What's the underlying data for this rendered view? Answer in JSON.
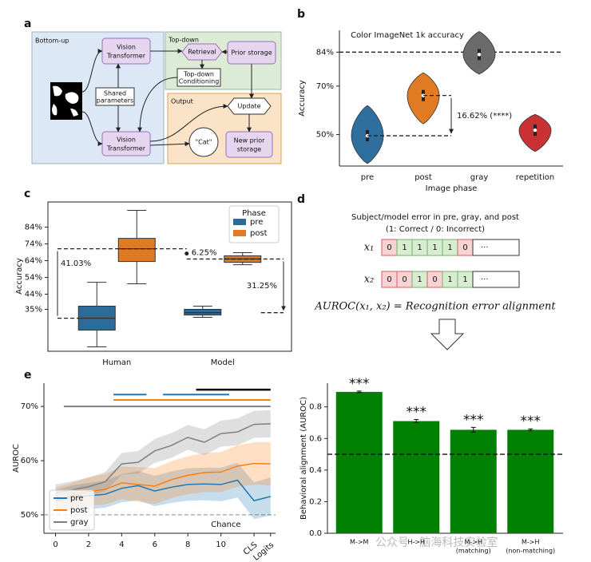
{
  "panel_a": {
    "letter": "a",
    "regions": [
      "Bottom-up",
      "Top-down",
      "Output"
    ],
    "nodes": [
      {
        "lines": [
          "Vision",
          "Transformer"
        ]
      },
      {
        "lines": [
          "Shared",
          "parameters"
        ]
      },
      {
        "lines": [
          "Vision",
          "Transformer"
        ]
      },
      {
        "lines": [
          "Retrieval"
        ]
      },
      {
        "lines": [
          "Prior storage"
        ]
      },
      {
        "lines": [
          "Top-down",
          "Conditioning"
        ]
      },
      {
        "lines": [
          "Update"
        ]
      },
      {
        "lines": [
          "\"Cat\""
        ]
      },
      {
        "lines": [
          "New prior",
          "storage"
        ]
      }
    ]
  },
  "panel_d": {
    "letter": "d",
    "title_lines": [
      "Subject/model error in pre, gray, and post",
      "(1: Correct / 0: Incorrect)"
    ],
    "rows": [
      {
        "label": "x₁",
        "cells": [
          "0",
          "1",
          "1",
          "1",
          "1",
          "0",
          "···"
        ]
      },
      {
        "label": "x₂",
        "cells": [
          "0",
          "0",
          "1",
          "0",
          "1",
          "1",
          "···"
        ]
      }
    ],
    "formula": "AUROC(x₁, x₂) = Recognition error alignment"
  },
  "chart_data": [
    {
      "panel": "b",
      "type": "violin",
      "title": "Color ImageNet 1k accuracy",
      "xlabel": "Image phase",
      "ylabel": "Accuracy",
      "categories": [
        "pre",
        "post",
        "gray",
        "repetition"
      ],
      "colors": [
        "#2e6f9e",
        "#e07b24",
        "#6b6b6b",
        "#c83232"
      ],
      "values": [
        49.5,
        66.1,
        83.0,
        51.8
      ],
      "lows": [
        38,
        54.4,
        74.9,
        43
      ],
      "highs": [
        62,
        75.5,
        92.5,
        58.3
      ],
      "ylim": [
        37,
        93
      ],
      "yticks": [
        {
          "value": 50,
          "label": "50%"
        },
        {
          "value": 70,
          "label": "70%"
        },
        {
          "value": 84,
          "label": "84%"
        }
      ],
      "reference_line": 84,
      "annotation": "16.62% (****)"
    },
    {
      "panel": "c",
      "type": "box",
      "ylabel": "Accuracy",
      "categories": [
        "Human",
        "Model"
      ],
      "legend_title": "Phase",
      "series": [
        {
          "name": "pre",
          "color": "#2d6b9a",
          "min": [
            12.6,
            30.2
          ],
          "q1": [
            22.6,
            31.6
          ],
          "median": [
            29.7,
            33
          ],
          "q3": [
            36.9,
            35
          ],
          "max": [
            51.1,
            36.9
          ]
        },
        {
          "name": "post",
          "color": "#e07b24",
          "min": [
            50.2,
            61.6
          ],
          "q1": [
            63.5,
            63
          ],
          "median": [
            71.1,
            65
          ],
          "q3": [
            77.3,
            66.9
          ],
          "max": [
            94,
            68.8
          ]
        }
      ],
      "ylim": [
        10,
        99
      ],
      "yticks": [
        {
          "value": 35,
          "label": "35%"
        },
        {
          "value": 44,
          "label": "44%"
        },
        {
          "value": 54,
          "label": "54%"
        },
        {
          "value": 64,
          "label": "64%"
        },
        {
          "value": 74,
          "label": "74%"
        },
        {
          "value": 84,
          "label": "84%"
        }
      ],
      "annotations": [
        "41.03%",
        "6.25%",
        "31.25%"
      ]
    },
    {
      "panel": "e",
      "type": "line",
      "ylabel": "AUROC",
      "x": [
        0,
        1,
        2,
        3,
        4,
        5,
        6,
        7,
        8,
        9,
        10,
        11,
        12,
        13
      ],
      "xlim": [
        -0.7,
        13.3
      ],
      "xticks": [
        0,
        2,
        4,
        6,
        8,
        10,
        {
          "value": 12,
          "label": "CLS"
        },
        {
          "value": 13,
          "label": "Logits"
        }
      ],
      "ylim": [
        46.6,
        74.3
      ],
      "yticks": [
        {
          "value": 50,
          "label": "50%"
        },
        {
          "value": 60,
          "label": "60%"
        },
        {
          "value": 70,
          "label": "70%"
        }
      ],
      "series": [
        {
          "name": "pre",
          "color": "#1f77b4",
          "values": [
            52.6,
            53.2,
            53.5,
            53.8,
            54.9,
            55.4,
            54.4,
            55.1,
            55.6,
            55.7,
            55.6,
            56.4,
            52.6,
            53.4
          ],
          "errors": [
            2,
            2.2,
            2.4,
            2.5,
            2.6,
            2.7,
            2.8,
            2.9,
            3,
            3,
            3.1,
            3.2,
            3.4,
            3.5
          ]
        },
        {
          "name": "post",
          "color": "#ff7f0e",
          "values": [
            52.8,
            53.5,
            54.3,
            54.7,
            55.9,
            55.6,
            55.3,
            56.5,
            57.3,
            57.8,
            57.9,
            59.0,
            59.5,
            59.4
          ],
          "errors": [
            2.2,
            2.4,
            2.6,
            2.8,
            3,
            3.2,
            3.3,
            3.4,
            3.5,
            3.6,
            3.7,
            3.8,
            3.9,
            4
          ]
        },
        {
          "name": "gray",
          "color": "#7f7f7f",
          "values": [
            54.1,
            54.6,
            55.2,
            56.1,
            59.4,
            59.7,
            61.8,
            62.8,
            64.3,
            63.4,
            65.0,
            65.3,
            66.7,
            66.8
          ],
          "errors": [
            1.5,
            1.6,
            1.7,
            1.8,
            2,
            2.1,
            2.2,
            2.3,
            2.3,
            2.4,
            2.4,
            2.5,
            2.5,
            2.5
          ]
        }
      ],
      "significance_bars": [
        {
          "color": "#7f7f7f",
          "from": 0.5,
          "to": 13,
          "y": 70
        },
        {
          "color": "#ff7f0e",
          "from": 3.5,
          "to": 13,
          "y": 71.2
        },
        {
          "color": "#1f77b4",
          "from": 3.5,
          "to": 5.5,
          "y": 72.2
        },
        {
          "color": "#1f77b4",
          "from": 6.5,
          "to": 10.5,
          "y": 72.2
        },
        {
          "color": "#000000",
          "from": 8.5,
          "to": 13,
          "y": 73.1
        }
      ],
      "reference_line": 50,
      "reference_label": "Chance",
      "legend": "lower left"
    },
    {
      "panel": "",
      "type": "bar",
      "ylabel": "Behavioral alignment (AUROC)",
      "categories": [
        "M->M",
        "H->H",
        "M->H",
        "M->H"
      ],
      "category_sublabels": [
        null,
        null,
        "(matching)",
        "(non-matching)"
      ],
      "values": [
        0.895,
        0.71,
        0.655,
        0.655
      ],
      "errors": [
        0.005,
        0.01,
        0.015,
        0.006
      ],
      "annotations": [
        "***",
        "***",
        "***",
        "***"
      ],
      "color": "#008000",
      "ylim": [
        0,
        0.95
      ],
      "yticks": [
        {
          "value": 0,
          "label": "0.0"
        },
        0.2,
        0.4,
        0.6,
        0.8
      ],
      "reference_line": 0.5
    }
  ],
  "watermark": "公众号 · 脑海科技实验室"
}
